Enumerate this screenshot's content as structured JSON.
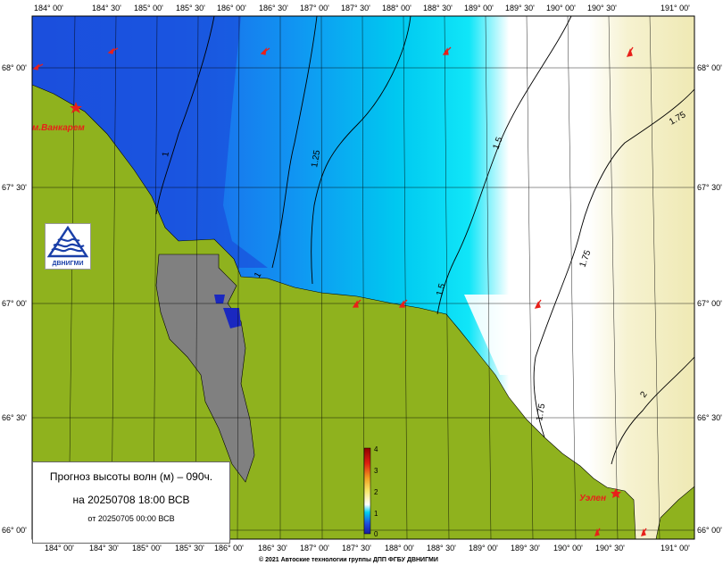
{
  "map": {
    "top_lon_ticks": [
      "184° 00'",
      "184° 30'",
      "185° 00'",
      "185° 30'",
      "186° 00'",
      "186° 30'",
      "187° 00'",
      "187° 30'",
      "188° 00'",
      "188° 30'",
      "189° 00'",
      "189° 30'",
      "190° 00'",
      "190° 30'",
      "191° 00'"
    ],
    "bottom_lon_ticks": [
      "184° 00'",
      "184° 30'",
      "185° 00'",
      "185° 30'",
      "186° 00'",
      "186° 30'",
      "187° 00'",
      "187° 30'",
      "188° 00'",
      "188° 30'",
      "189° 00'",
      "189° 30'",
      "190° 00'",
      "190° 30'",
      "191° 00'"
    ],
    "left_lat_ticks": [
      "68° 00'",
      "67° 30'",
      "67° 00'",
      "66° 30'",
      "66° 00'"
    ],
    "right_lat_ticks": [
      "68° 00'",
      "67° 30'",
      "67° 00'",
      "66° 30'",
      "66° 00'"
    ],
    "contour_labels": [
      "1",
      "1.25",
      "1.5",
      "1.5",
      "1.75",
      "1.75",
      "1.75",
      "2",
      "1"
    ],
    "places": {
      "vankarem": "м.Ванкарем",
      "uelen": "Уэлен"
    },
    "colors": {
      "land": "#8fb21e",
      "lagoon": "#808080",
      "sea_low": "#1e5ae6",
      "sea_mid": "#00d0f0",
      "sea_high": "#f2efc0",
      "wind_arrow": "#e8201a"
    }
  },
  "colorbar": {
    "ticks": [
      "4",
      "3",
      "2",
      "1",
      "0"
    ]
  },
  "info": {
    "title": "Прогноз высоты волн (м) – 090ч.",
    "valid": "на 20250708 18:00 ВСВ",
    "issued": "от 20250705 00:00 ВСВ"
  },
  "logo": {
    "text": "ДВНИГМИ"
  },
  "credit": "© 2021 Автоские технологии группы ДПП ФГБУ ДВНИГМИ"
}
